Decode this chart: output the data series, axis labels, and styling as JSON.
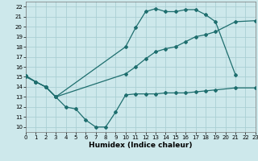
{
  "xlabel": "Humidex (Indice chaleur)",
  "background_color": "#cde8eb",
  "grid_color": "#aacfd4",
  "line_color": "#1e6e6e",
  "series": {
    "line1_x": [
      0,
      1,
      2,
      3,
      4,
      5,
      6,
      7,
      8,
      9,
      10,
      11,
      12,
      13,
      14,
      15,
      16,
      17,
      18,
      19,
      21,
      23
    ],
    "line1_y": [
      15.0,
      14.5,
      14.0,
      13.0,
      12.0,
      11.8,
      10.7,
      10.0,
      10.0,
      11.5,
      13.2,
      13.3,
      13.3,
      13.3,
      13.4,
      13.4,
      13.4,
      13.5,
      13.6,
      13.7,
      13.9,
      13.9
    ],
    "line2_x": [
      0,
      1,
      2,
      3,
      10,
      11,
      12,
      13,
      14,
      15,
      16,
      17,
      18,
      19,
      21
    ],
    "line2_y": [
      15.1,
      14.5,
      14.0,
      13.0,
      18.0,
      19.9,
      21.5,
      21.8,
      21.5,
      21.5,
      21.7,
      21.7,
      21.2,
      20.5,
      15.2
    ],
    "line3_x": [
      0,
      1,
      2,
      3,
      10,
      11,
      12,
      13,
      14,
      15,
      16,
      17,
      18,
      19,
      21,
      23
    ],
    "line3_y": [
      15.1,
      14.5,
      14.0,
      13.0,
      15.3,
      16.0,
      16.8,
      17.5,
      17.8,
      18.0,
      18.5,
      19.0,
      19.2,
      19.5,
      20.5,
      20.6
    ]
  },
  "xlim": [
    0,
    23
  ],
  "ylim": [
    9.5,
    22.5
  ],
  "yticks": [
    10,
    11,
    12,
    13,
    14,
    15,
    16,
    17,
    18,
    19,
    20,
    21,
    22
  ],
  "xticks": [
    0,
    1,
    2,
    3,
    4,
    5,
    6,
    7,
    8,
    9,
    10,
    11,
    12,
    13,
    14,
    15,
    16,
    17,
    18,
    19,
    20,
    21,
    22,
    23
  ],
  "marker": "D",
  "markersize": 2.0,
  "linewidth": 0.9,
  "label_fontsize": 6.5,
  "tick_fontsize": 5.0
}
